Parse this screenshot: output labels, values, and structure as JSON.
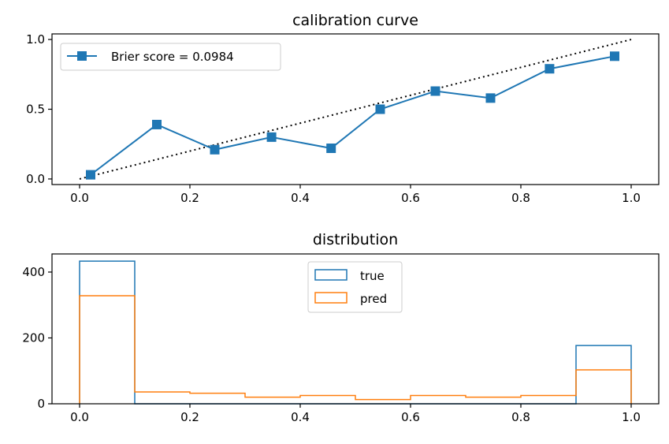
{
  "chart_data": [
    {
      "type": "line",
      "title": "calibration curve",
      "xlabel": "",
      "ylabel": "",
      "xlim": [
        -0.05,
        1.05
      ],
      "ylim": [
        -0.04,
        1.04
      ],
      "xticks": [
        0.0,
        0.2,
        0.4,
        0.6,
        0.8,
        1.0
      ],
      "xtick_labels": [
        "0.0",
        "0.2",
        "0.4",
        "0.6",
        "0.8",
        "1.0"
      ],
      "yticks": [
        0.0,
        0.5,
        1.0
      ],
      "ytick_labels": [
        "0.0",
        "0.5",
        "1.0"
      ],
      "grid": false,
      "legend_position": "upper-left",
      "series": [
        {
          "name": "Brier score = 0.0984",
          "color": "#1f77b4",
          "marker": "square",
          "x": [
            0.02,
            0.14,
            0.245,
            0.348,
            0.456,
            0.545,
            0.645,
            0.745,
            0.852,
            0.97
          ],
          "y": [
            0.03,
            0.39,
            0.21,
            0.3,
            0.22,
            0.5,
            0.63,
            0.58,
            0.79,
            0.88
          ]
        },
        {
          "color": "#000000",
          "style": "dotted",
          "x": [
            0.0,
            1.0
          ],
          "y": [
            0.0,
            1.0
          ]
        }
      ]
    },
    {
      "type": "bar",
      "subtype": "step-histogram",
      "title": "distribution",
      "xlabel": "",
      "ylabel": "",
      "xlim": [
        -0.05,
        1.05
      ],
      "ylim": [
        0,
        455
      ],
      "xticks": [
        0.0,
        0.2,
        0.4,
        0.6,
        0.8,
        1.0
      ],
      "xtick_labels": [
        "0.0",
        "0.2",
        "0.4",
        "0.6",
        "0.8",
        "1.0"
      ],
      "yticks": [
        0,
        200,
        400
      ],
      "ytick_labels": [
        "0",
        "200",
        "400"
      ],
      "grid": false,
      "legend_position": "top-center",
      "bin_edges": [
        0.0,
        0.1,
        0.2,
        0.3,
        0.4,
        0.5,
        0.6,
        0.7,
        0.8,
        0.9,
        1.0
      ],
      "series": [
        {
          "name": "true",
          "color": "#1f77b4",
          "values": [
            433,
            0,
            0,
            0,
            0,
            0,
            0,
            0,
            0,
            177
          ]
        },
        {
          "name": "pred",
          "color": "#ff7f0e",
          "values": [
            328,
            36,
            32,
            20,
            25,
            13,
            25,
            20,
            25,
            103
          ]
        }
      ]
    }
  ]
}
